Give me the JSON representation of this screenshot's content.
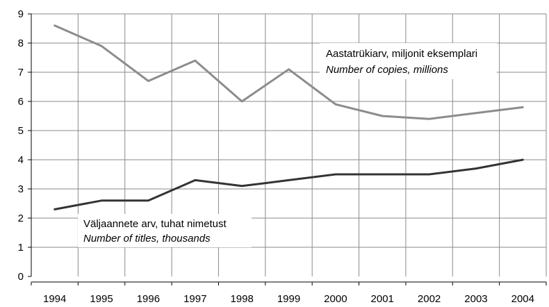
{
  "chart_data": {
    "type": "line",
    "categories": [
      "1994",
      "1995",
      "1996",
      "1997",
      "1998",
      "1999",
      "2000",
      "2001",
      "2002",
      "2003",
      "2004"
    ],
    "ylim": [
      0,
      9
    ],
    "yticks": [
      "0",
      "1",
      "2",
      "3",
      "4",
      "5",
      "6",
      "7",
      "8",
      "9"
    ],
    "grid": true,
    "series": [
      {
        "key": "copies",
        "color": "#8c8c8c",
        "values": [
          8.6,
          7.9,
          6.7,
          7.4,
          6.0,
          7.1,
          5.9,
          5.5,
          5.4,
          5.6,
          5.8
        ]
      },
      {
        "key": "titles",
        "color": "#333333",
        "values": [
          2.3,
          2.6,
          2.6,
          3.3,
          3.1,
          3.3,
          3.5,
          3.5,
          3.5,
          3.7,
          4.0
        ]
      }
    ],
    "annotations": [
      {
        "key": "copies",
        "line1": "Aastatrükiarv, miljonit eksemplari",
        "line2": "Number of copies, millions"
      },
      {
        "key": "titles",
        "line1": "Väljaannete arv, tuhat nimetust",
        "line2": "Number of titles, thousands"
      }
    ]
  }
}
